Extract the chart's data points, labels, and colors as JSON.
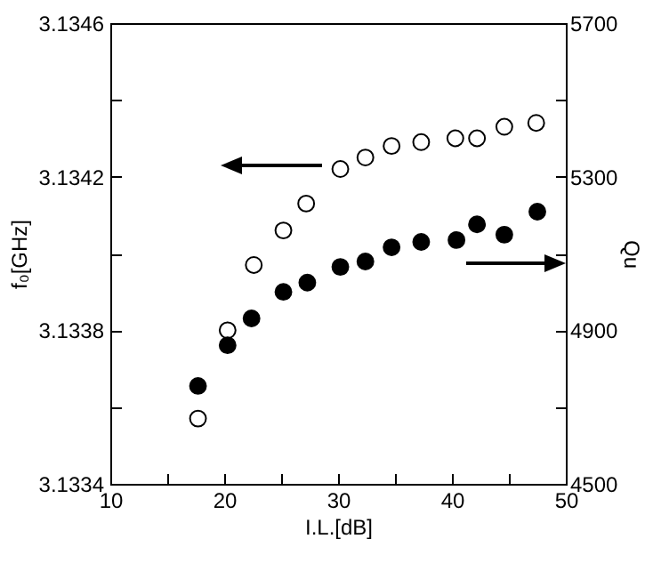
{
  "chart_data": {
    "type": "scatter",
    "xlabel": "I.L.[dB]",
    "ylabel": "f₀[GHz]",
    "y2label": "Qu",
    "xlim": [
      10,
      50
    ],
    "xticks": [
      10,
      {
        "value": 15,
        "label": null
      },
      20,
      {
        "value": 25,
        "label": null
      },
      30,
      {
        "value": 35,
        "label": null
      },
      40,
      {
        "value": 45,
        "label": null
      },
      50
    ],
    "ylim": [
      3.1334,
      3.1346
    ],
    "yticks": [
      3.1334,
      {
        "value": 3.1336,
        "label": null
      },
      3.1338,
      {
        "value": 3.134,
        "label": null
      },
      3.1342,
      {
        "value": 3.1344,
        "label": null
      },
      3.1346
    ],
    "y2lim": [
      4500,
      5700
    ],
    "y2ticks": [
      4500,
      {
        "value": 4700,
        "label": null
      },
      4900,
      {
        "value": 5100,
        "label": null
      },
      5300,
      {
        "value": 5500,
        "label": null
      },
      5700
    ],
    "marker": "circle",
    "grid": false,
    "series": [
      {
        "color": "#ffffff",
        "x": [
          17.7,
          20.3,
          22.6,
          25.2,
          27.2,
          30.2,
          32.4,
          34.7,
          37.3,
          40.3,
          42.2,
          44.6,
          47.4
        ],
        "values": [
          3.13357,
          3.1338,
          3.13397,
          3.13406,
          3.13413,
          3.13422,
          3.13425,
          3.13428,
          3.13429,
          3.1343,
          3.1343,
          3.13433,
          3.13434
        ]
      },
      {
        "color": "#000000",
        "axis": "y2",
        "x": [
          17.7,
          20.3,
          22.4,
          25.2,
          27.3,
          30.2,
          32.4,
          34.7,
          37.3,
          40.4,
          42.2,
          44.6,
          47.5
        ],
        "values": [
          4755,
          4861,
          4931,
          5000,
          5024,
          5065,
          5079,
          5116,
          5130,
          5135,
          5176,
          5149,
          5209
        ]
      }
    ]
  }
}
